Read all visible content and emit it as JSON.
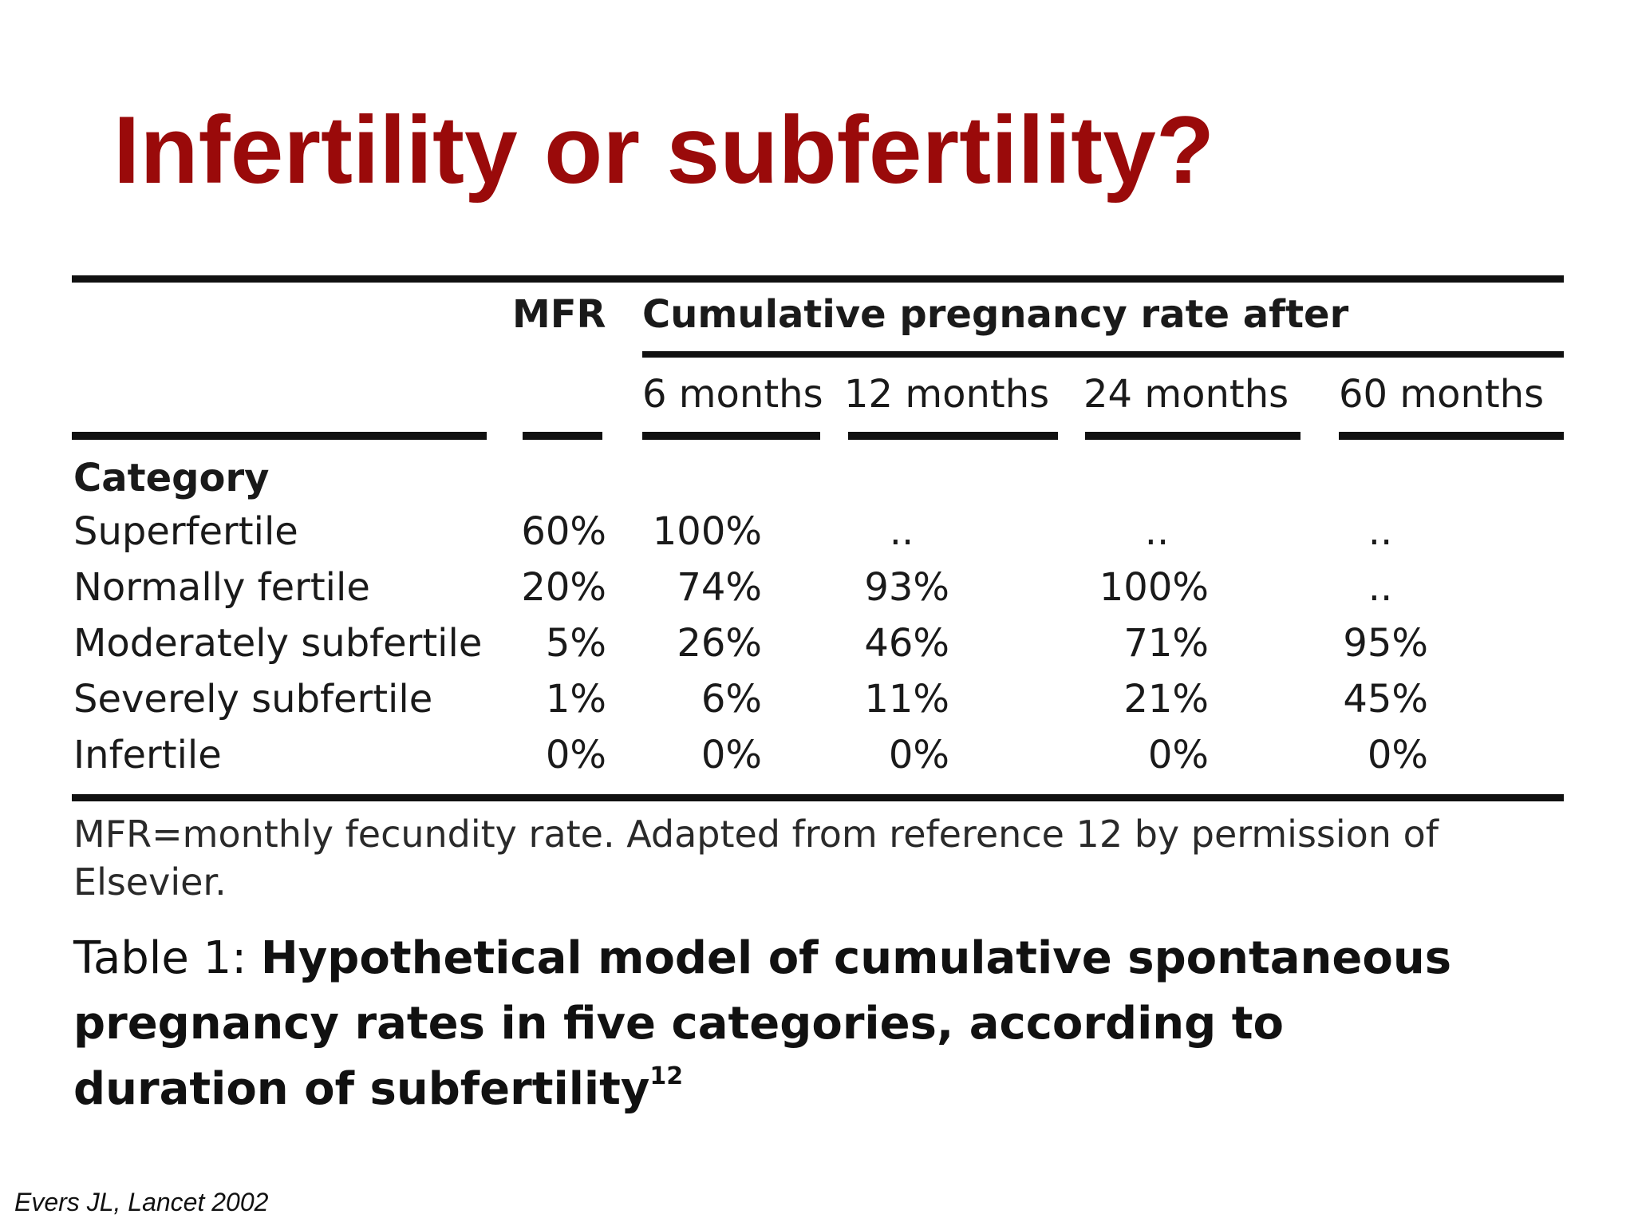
{
  "slide": {
    "title": "Infertility or subfertility?",
    "citation": "Evers JL, Lancet 2002",
    "title_color": "#9a0a0a"
  },
  "table": {
    "header": {
      "mfr": "MFR",
      "group": "Cumulative pregnancy rate after",
      "periods": [
        "6 months",
        "12 months",
        "24 months",
        "60 months"
      ]
    },
    "category_label": "Category",
    "rows": [
      {
        "category": "Superfertile",
        "mfr": "60%",
        "m6": "100%",
        "m12": "..",
        "m24": "..",
        "m60": ".."
      },
      {
        "category": "Normally fertile",
        "mfr": "20%",
        "m6": "74%",
        "m12": "93%",
        "m24": "100%",
        "m60": ".."
      },
      {
        "category": "Moderately subfertile",
        "mfr": "5%",
        "m6": "26%",
        "m12": "46%",
        "m24": "71%",
        "m60": "95%"
      },
      {
        "category": "Severely subfertile",
        "mfr": "1%",
        "m6": "6%",
        "m12": "11%",
        "m24": "21%",
        "m60": "45%"
      },
      {
        "category": "Infertile",
        "mfr": "0%",
        "m6": "0%",
        "m12": "0%",
        "m24": "0%",
        "m60": "0%"
      }
    ],
    "footnote": "MFR=monthly fecundity rate. Adapted from reference 12 by permission of Elsevier.",
    "caption": {
      "label": "Table 1:",
      "text": "Hypothetical model of cumulative spontaneous pregnancy rates in five categories, according to duration of subfertility",
      "superscript": "12"
    }
  }
}
